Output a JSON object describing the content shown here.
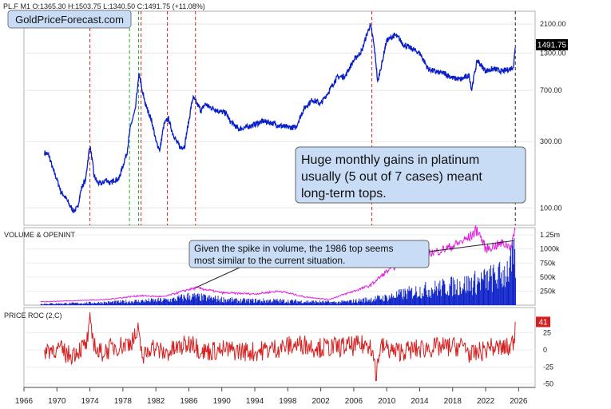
{
  "header": {
    "symbol_info": "PL.F  M1  O:1365.30  H:1503.75  L:1340.50  C:1491.75  (+11.08%)",
    "watermark": "GoldPriceForecast.com"
  },
  "colors": {
    "price": "#0a1fc8",
    "volume": "#0a1fc8",
    "openint": "#e020e0",
    "roc": "#d42020",
    "red_line": "#d42020",
    "green_line": "#20b020",
    "black_line": "#222222",
    "callout_bg": "#c9dcf5",
    "last_price_bg": "#000000",
    "roc_badge_bg": "#d42020"
  },
  "chart_data": [
    {
      "type": "line",
      "panel": "price",
      "y_scale": "log",
      "y_ticks": [
        {
          "value": 100,
          "label": "100.00"
        },
        {
          "value": 300,
          "label": "300.00"
        },
        {
          "value": 700,
          "label": "700.00"
        },
        {
          "value": 1300,
          "label": "1300.00"
        },
        {
          "value": 2100,
          "label": "2100.00"
        }
      ],
      "last_price_label": "1491.75",
      "annotation": "Huge monthly gains in platinum usually (5 out of 7 cases) meant long-term tops.",
      "series": [
        {
          "x": [
            1968.5,
            1969.0,
            1969.5,
            1970.0,
            1970.5,
            1971.0,
            1971.5,
            1972.0,
            1972.5,
            1973.0,
            1973.5,
            1974.0,
            1974.5,
            1975.0,
            1975.5,
            1976.0,
            1976.5,
            1977.0,
            1977.5,
            1978.0,
            1978.5,
            1979.0,
            1979.5,
            1980.0,
            1980.3,
            1980.8,
            1981.5,
            1982.0,
            1982.5,
            1983.0,
            1983.5,
            1984.0,
            1984.5,
            1985.0,
            1985.5,
            1986.0,
            1986.5,
            1987.0,
            1987.5,
            1988.0,
            1988.5,
            1989.0,
            1989.5,
            1990.0,
            1990.5,
            1991.0,
            1992.0,
            1993.0,
            1994.0,
            1995.0,
            1996.0,
            1997.0,
            1998.0,
            1999.0,
            2000.0,
            2001.0,
            2002.0,
            2003.0,
            2004.0,
            2005.0,
            2006.0,
            2007.0,
            2008.0,
            2008.3,
            2008.9,
            2009.5,
            2010.0,
            2011.0,
            2011.5,
            2012.0,
            2013.0,
            2014.0,
            2015.0,
            2016.0,
            2017.0,
            2018.0,
            2019.0,
            2020.0,
            2020.3,
            2021.0,
            2021.5,
            2022.0,
            2023.0,
            2024.0,
            2025.0,
            2025.4,
            2025.6
          ],
          "y": [
            250,
            240,
            190,
            160,
            130,
            120,
            105,
            95,
            100,
            140,
            160,
            280,
            170,
            150,
            150,
            160,
            150,
            160,
            160,
            200,
            250,
            400,
            500,
            920,
            700,
            540,
            420,
            300,
            260,
            400,
            440,
            350,
            300,
            270,
            280,
            420,
            620,
            560,
            500,
            560,
            530,
            520,
            500,
            490,
            480,
            420,
            370,
            380,
            400,
            420,
            410,
            390,
            380,
            380,
            520,
            600,
            560,
            690,
            870,
            890,
            1150,
            1350,
            2060,
            1700,
            790,
            1150,
            1600,
            1750,
            1650,
            1500,
            1400,
            1300,
            1000,
            950,
            930,
            860,
            840,
            900,
            700,
            1150,
            1050,
            970,
            1000,
            960,
            1000,
            1050,
            1491.75
          ]
        }
      ]
    },
    {
      "type": "bar",
      "panel": "volume",
      "title": "VOLUME & OPENINT",
      "y_ticks": [
        {
          "value": 250000,
          "label": "250k"
        },
        {
          "value": 500000,
          "label": "500k"
        },
        {
          "value": 750000,
          "label": "750k"
        },
        {
          "value": 1000000,
          "label": "1000k"
        },
        {
          "value": 1250000,
          "label": "1.25m"
        }
      ],
      "annotation": "Given the spike in volume, the 1986 top seems most similar to the current situation.",
      "series": [
        {
          "name": "volume",
          "x": [
            1968,
            1972,
            1976,
            1980,
            1984,
            1986,
            1988,
            1992,
            1996,
            2000,
            2004,
            2006,
            2008,
            2010,
            2012,
            2014,
            2016,
            2018,
            2020,
            2022,
            2024,
            2025.6
          ],
          "y": [
            30000,
            40000,
            60000,
            90000,
            120000,
            200000,
            160000,
            100000,
            100000,
            80000,
            60000,
            90000,
            130000,
            170000,
            250000,
            320000,
            370000,
            420000,
            470000,
            560000,
            660000,
            1000000
          ]
        },
        {
          "name": "openint",
          "x": [
            1968,
            1972,
            1976,
            1980,
            1983,
            1986,
            1987,
            1990,
            1994,
            1997,
            2000,
            2003,
            2006,
            2008,
            2010,
            2012,
            2014,
            2016,
            2018,
            2020,
            2021,
            2022,
            2024,
            2025,
            2025.6
          ],
          "y": [
            60000,
            80000,
            100000,
            170000,
            150000,
            280000,
            310000,
            220000,
            200000,
            250000,
            150000,
            100000,
            250000,
            350000,
            600000,
            780000,
            900000,
            950000,
            1050000,
            1200000,
            1350000,
            1000000,
            1100000,
            1050000,
            1300000
          ]
        }
      ]
    },
    {
      "type": "line",
      "panel": "roc",
      "title": "PRICE ROC (2,C)",
      "y_ticks": [
        {
          "value": -50,
          "label": "-50"
        },
        {
          "value": -25,
          "label": "-25"
        },
        {
          "value": 0,
          "label": "0"
        },
        {
          "value": 25,
          "label": "25"
        }
      ],
      "last_value_label": "41",
      "series": [
        {
          "x": [
            1968.5,
            1970.0,
            1971.5,
            1973.5,
            1974.0,
            1975.0,
            1977.0,
            1978.5,
            1979.8,
            1980.5,
            1981.5,
            1983.0,
            1986.5,
            1987.5,
            1990.0,
            1994.0,
            1998.0,
            2000.0,
            2001.5,
            2006.0,
            2008.0,
            2008.7,
            2009.3,
            2011.0,
            2015.0,
            2019.5,
            2020.2,
            2022.5,
            2025.0,
            2025.6
          ],
          "y": [
            0,
            5,
            -15,
            12,
            55,
            -10,
            8,
            15,
            40,
            -20,
            10,
            -10,
            20,
            -5,
            0,
            -5,
            10,
            15,
            5,
            10,
            15,
            -45,
            10,
            -5,
            5,
            10,
            -15,
            5,
            5,
            41
          ]
        }
      ]
    },
    {
      "type": "axis",
      "panel": "x",
      "x_ticks": [
        "1966",
        "1970",
        "1974",
        "1978",
        "1982",
        "1986",
        "1990",
        "1994",
        "1998",
        "2002",
        "2006",
        "2010",
        "2014",
        "2018",
        "2022",
        "2026"
      ],
      "vertical_markers": [
        {
          "x": 1974.0,
          "color": "red"
        },
        {
          "x": 1978.8,
          "color": "green"
        },
        {
          "x": 1979.9,
          "color": "green"
        },
        {
          "x": 1980.2,
          "color": "red"
        },
        {
          "x": 1983.4,
          "color": "red"
        },
        {
          "x": 1986.8,
          "color": "red"
        },
        {
          "x": 2008.2,
          "color": "red"
        },
        {
          "x": 2025.6,
          "color": "black"
        }
      ]
    }
  ]
}
